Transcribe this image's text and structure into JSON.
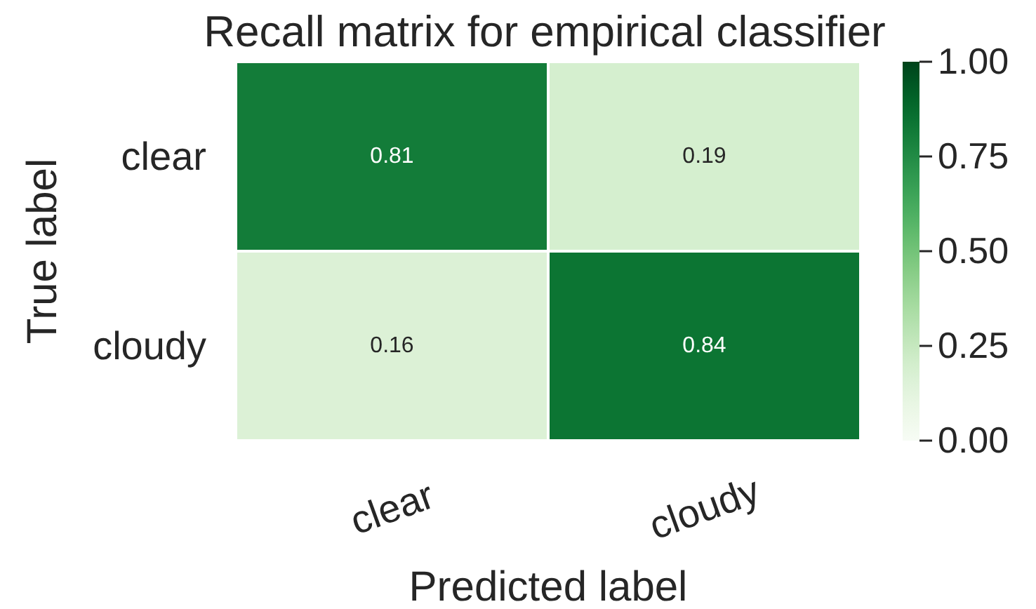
{
  "chart_data": {
    "type": "heatmap",
    "title": "Recall matrix for empirical classifier",
    "xlabel": "Predicted label",
    "ylabel": "True label",
    "categories": [
      "clear",
      "cloudy"
    ],
    "y_categories": [
      "clear",
      "cloudy"
    ],
    "cells": [
      [
        0.81,
        0.19
      ],
      [
        0.16,
        0.84
      ]
    ],
    "data_labels": true,
    "clim": [
      0,
      1
    ],
    "cticks": [
      {
        "value": 0,
        "label": "0.00"
      },
      {
        "value": 0.25,
        "label": "0.25"
      },
      {
        "value": 0.5,
        "label": "0.50"
      },
      {
        "value": 0.75,
        "label": "0.75"
      },
      {
        "value": 1,
        "label": "1.00"
      }
    ]
  }
}
